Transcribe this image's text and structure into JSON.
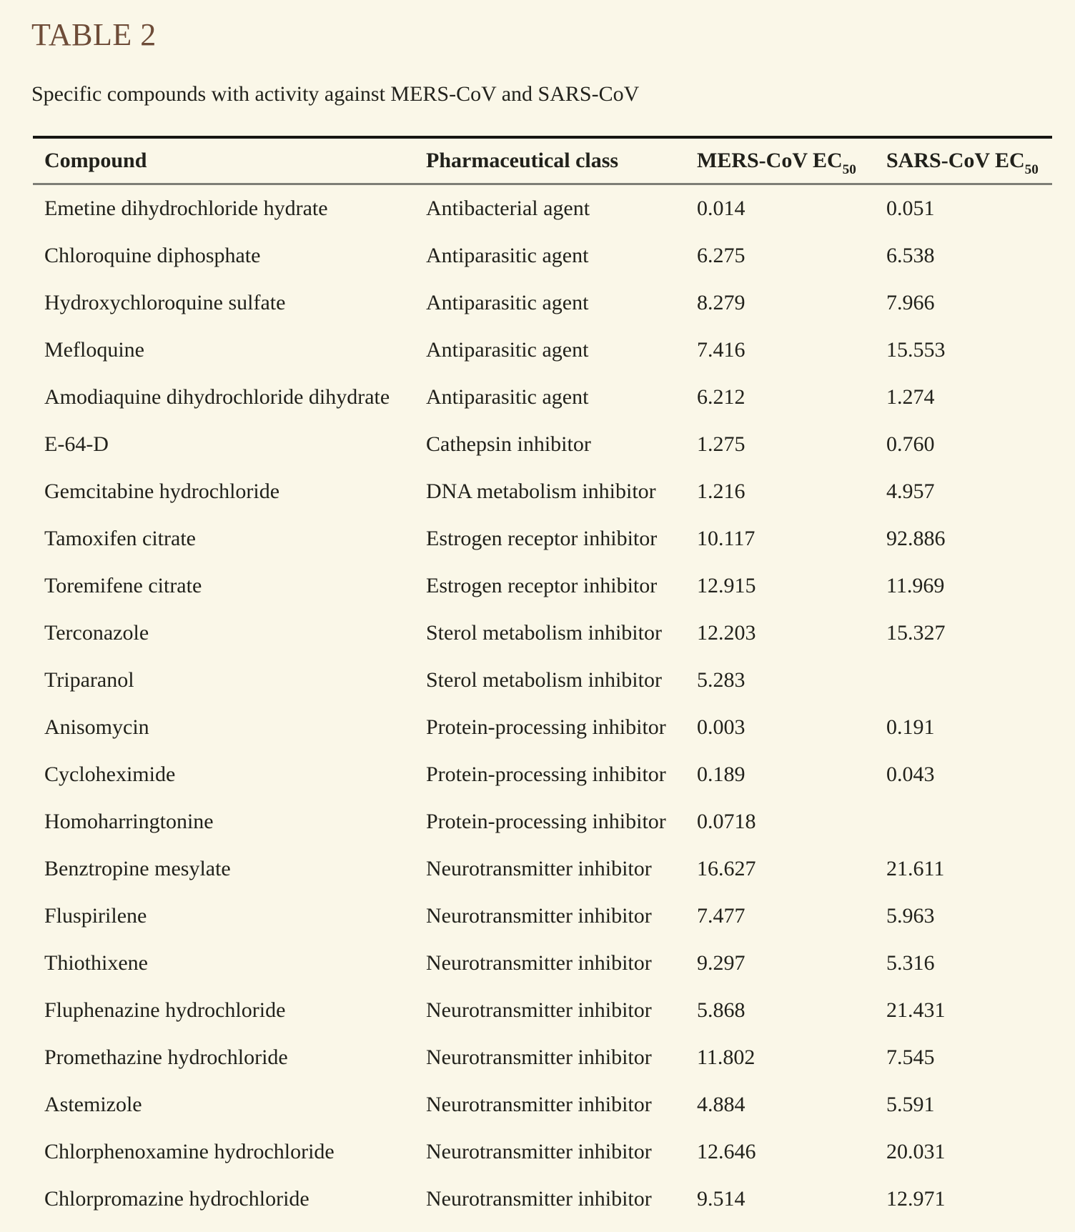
{
  "page": {
    "title": "TABLE 2",
    "caption": "Specific compounds with activity against MERS-CoV and SARS-CoV",
    "title_color": "#6E4C38",
    "background_color": "#FAF7E8"
  },
  "table": {
    "columns": [
      {
        "label": "Compound",
        "sub": ""
      },
      {
        "label": "Pharmaceutical class",
        "sub": ""
      },
      {
        "label": "MERS-CoV EC",
        "sub": "50"
      },
      {
        "label": "SARS-CoV EC",
        "sub": "50"
      }
    ],
    "rows": [
      {
        "compound": "Emetine dihydrochloride hydrate",
        "pharm_class": "Antibacterial agent",
        "mers_ec50": "0.014",
        "sars_ec50": "0.051"
      },
      {
        "compound": "Chloroquine diphosphate",
        "pharm_class": "Antiparasitic agent",
        "mers_ec50": "6.275",
        "sars_ec50": "6.538"
      },
      {
        "compound": "Hydroxychloroquine sulfate",
        "pharm_class": "Antiparasitic agent",
        "mers_ec50": "8.279",
        "sars_ec50": "7.966"
      },
      {
        "compound": "Mefloquine",
        "pharm_class": "Antiparasitic agent",
        "mers_ec50": "7.416",
        "sars_ec50": "15.553"
      },
      {
        "compound": "Amodiaquine dihydrochloride dihydrate",
        "pharm_class": "Antiparasitic agent",
        "mers_ec50": "6.212",
        "sars_ec50": "1.274"
      },
      {
        "compound": "E-64-D",
        "pharm_class": "Cathepsin inhibitor",
        "mers_ec50": "1.275",
        "sars_ec50": "0.760"
      },
      {
        "compound": "Gemcitabine hydrochloride",
        "pharm_class": "DNA metabolism inhibitor",
        "mers_ec50": "1.216",
        "sars_ec50": "4.957"
      },
      {
        "compound": "Tamoxifen citrate",
        "pharm_class": "Estrogen receptor inhibitor",
        "mers_ec50": "10.117",
        "sars_ec50": "92.886"
      },
      {
        "compound": "Toremifene citrate",
        "pharm_class": "Estrogen receptor inhibitor",
        "mers_ec50": "12.915",
        "sars_ec50": "11.969"
      },
      {
        "compound": "Terconazole",
        "pharm_class": "Sterol metabolism inhibitor",
        "mers_ec50": "12.203",
        "sars_ec50": "15.327"
      },
      {
        "compound": "Triparanol",
        "pharm_class": "Sterol metabolism inhibitor",
        "mers_ec50": "5.283",
        "sars_ec50": ""
      },
      {
        "compound": "Anisomycin",
        "pharm_class": "Protein-processing inhibitor",
        "mers_ec50": "0.003",
        "sars_ec50": "0.191"
      },
      {
        "compound": "Cycloheximide",
        "pharm_class": "Protein-processing inhibitor",
        "mers_ec50": "0.189",
        "sars_ec50": "0.043"
      },
      {
        "compound": "Homoharringtonine",
        "pharm_class": "Protein-processing inhibitor",
        "mers_ec50": "0.0718",
        "sars_ec50": ""
      },
      {
        "compound": "Benztropine mesylate",
        "pharm_class": "Neurotransmitter inhibitor",
        "mers_ec50": "16.627",
        "sars_ec50": "21.611"
      },
      {
        "compound": "Fluspirilene",
        "pharm_class": "Neurotransmitter inhibitor",
        "mers_ec50": "7.477",
        "sars_ec50": "5.963"
      },
      {
        "compound": "Thiothixene",
        "pharm_class": "Neurotransmitter inhibitor",
        "mers_ec50": "9.297",
        "sars_ec50": "5.316"
      },
      {
        "compound": "Fluphenazine hydrochloride",
        "pharm_class": "Neurotransmitter inhibitor",
        "mers_ec50": "5.868",
        "sars_ec50": "21.431"
      },
      {
        "compound": "Promethazine hydrochloride",
        "pharm_class": "Neurotransmitter inhibitor",
        "mers_ec50": "11.802",
        "sars_ec50": "7.545"
      },
      {
        "compound": "Astemizole",
        "pharm_class": "Neurotransmitter inhibitor",
        "mers_ec50": "4.884",
        "sars_ec50": "5.591"
      },
      {
        "compound": "Chlorphenoxamine hydrochloride",
        "pharm_class": "Neurotransmitter inhibitor",
        "mers_ec50": "12.646",
        "sars_ec50": "20.031"
      },
      {
        "compound": "Chlorpromazine hydrochloride",
        "pharm_class": "Neurotransmitter inhibitor",
        "mers_ec50": "9.514",
        "sars_ec50": "12.971"
      }
    ]
  }
}
